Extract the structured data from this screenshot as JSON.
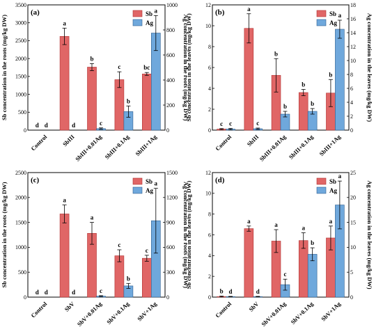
{
  "colors": {
    "sb": "#e06666",
    "ag": "#6fa8dc",
    "sb_edge": "#b03030",
    "ag_edge": "#2f5f8f"
  },
  "chart_data": [
    {
      "type": "bar",
      "panel_label": "(a)",
      "categories": [
        "Control",
        "SbIII",
        "SbIII+0.01Ag",
        "SbIII+0.1Ag",
        "SbIII+1Ag"
      ],
      "ylabel": "Sb concentration in the roots (mg/kg DW)",
      "ylabel_right": "Ag concentration in the roots (mg/kg DW)",
      "ylim": [
        0,
        3500
      ],
      "ytick_step": 500,
      "ylim_right": [
        0,
        1000
      ],
      "ytick_step_right": 200,
      "legend": "top-right",
      "series": [
        {
          "name": "Sb",
          "axis": "left",
          "values": [
            0,
            2620,
            1760,
            1410,
            1570
          ],
          "errors": [
            0,
            230,
            100,
            220,
            40
          ],
          "letters": [
            "d",
            "a",
            "b",
            "c",
            "bc"
          ]
        },
        {
          "name": "Ag",
          "axis": "right",
          "values": [
            0,
            0,
            12,
            148,
            775
          ],
          "errors": [
            0,
            0,
            6,
            45,
            140
          ],
          "letters": [
            "d",
            "d",
            "c",
            "b",
            "a"
          ]
        }
      ]
    },
    {
      "type": "bar",
      "panel_label": "(b)",
      "categories": [
        "Control",
        "SbIII",
        "SbIII+0.01Ag",
        "SbIII+0.1Ag",
        "SbIII+1Ag"
      ],
      "ylabel": "Sb concentration in the leaves (mg/kg DW)",
      "ylabel_right": "Ag concentration in the leaves (mg/kg DW)",
      "ylim": [
        0,
        12
      ],
      "ytick_step": 2,
      "ylim_right": [
        0,
        18
      ],
      "ytick_step_right": 2,
      "legend": "top-right",
      "series": [
        {
          "name": "Sb",
          "axis": "left",
          "values": [
            0.1,
            9.75,
            5.25,
            3.6,
            3.55
          ],
          "errors": [
            0.05,
            1.4,
            1.6,
            0.3,
            1.3
          ],
          "letters": [
            "c",
            "a",
            "b",
            "b",
            "b"
          ]
        },
        {
          "name": "Ag",
          "axis": "right",
          "values": [
            0.15,
            0.2,
            2.3,
            2.7,
            14.5
          ],
          "errors": [
            0.1,
            0.1,
            0.4,
            0.4,
            1.3
          ],
          "letters": [
            "c",
            "c",
            "b",
            "b",
            "a"
          ]
        }
      ]
    },
    {
      "type": "bar",
      "panel_label": "(c)",
      "categories": [
        "Control",
        "SbV",
        "SbV+0.01Ag",
        "SbV+0.1Ag",
        "SbV+1Ag"
      ],
      "ylabel": "Sb concentration in the roots (mg/kg DW)",
      "ylabel_right": "Ag concentration in the roots (mg/kg DW)",
      "ylim": [
        0,
        2500
      ],
      "ytick_step": 500,
      "ylim_right": [
        0,
        1500
      ],
      "ytick_step_right": 300,
      "legend": "top-right",
      "series": [
        {
          "name": "Sb",
          "axis": "left",
          "values": [
            0,
            1670,
            1280,
            830,
            780
          ],
          "errors": [
            0,
            180,
            220,
            120,
            60
          ],
          "letters": [
            "d",
            "a",
            "a",
            "c",
            "c"
          ]
        },
        {
          "name": "Ag",
          "axis": "right",
          "values": [
            0,
            0,
            12,
            135,
            920
          ],
          "errors": [
            0,
            0,
            6,
            30,
            390
          ],
          "letters": [
            "d",
            "d",
            "c",
            "b",
            "a"
          ]
        }
      ]
    },
    {
      "type": "bar",
      "panel_label": "(d)",
      "categories": [
        "Control",
        "SbV",
        "SbV+0.01Ag",
        "SbV+0.1Ag",
        "SbV+1Ag"
      ],
      "ylabel": "Sb concentration in the leaves (mg/kg DW)",
      "ylabel_right": "Ag concentration in the leaves (mg/kg DW)",
      "ylim": [
        0,
        12
      ],
      "ytick_step": 2,
      "ylim_right": [
        0,
        25
      ],
      "ytick_step_right": 5,
      "legend": "top-right",
      "series": [
        {
          "name": "Sb",
          "axis": "left",
          "values": [
            0.05,
            6.6,
            5.4,
            5.45,
            5.7
          ],
          "errors": [
            0.05,
            0.25,
            1.1,
            0.75,
            1.15
          ],
          "letters": [
            "b",
            "a",
            "a",
            "a",
            "a"
          ]
        },
        {
          "name": "Ag",
          "axis": "right",
          "values": [
            0.1,
            0.1,
            2.5,
            8.6,
            18.5
          ],
          "errors": [
            0.05,
            0.05,
            1.1,
            1.3,
            4.8
          ],
          "letters": [
            "d",
            "d",
            "c",
            "b",
            "a"
          ]
        }
      ]
    }
  ]
}
